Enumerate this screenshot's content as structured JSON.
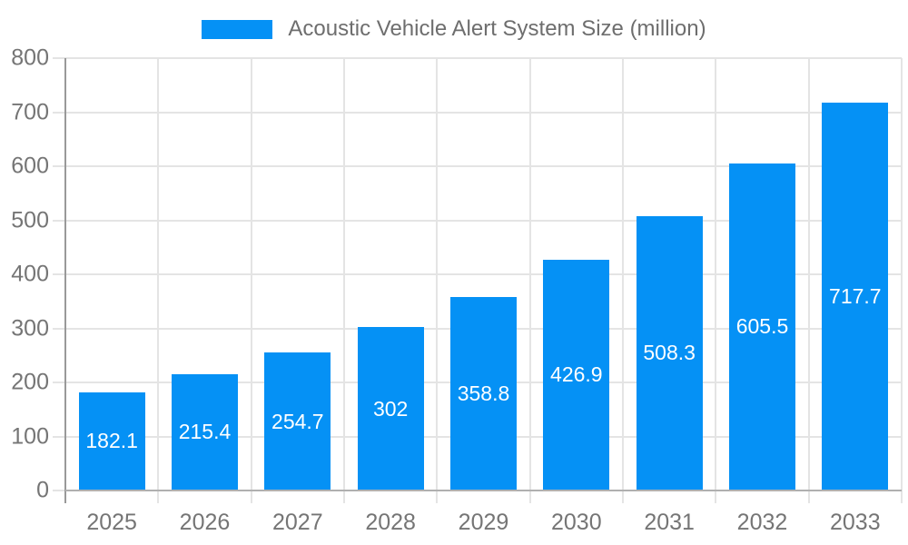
{
  "colors": {
    "bar": "#0591f5",
    "gridline": "#e4e4e4",
    "y_axis_line": "#999999",
    "x_baseline": "#b0b0b0",
    "axis_text": "#757575",
    "legend_text": "#6e6e6e",
    "value_label_text": "#ffffff",
    "background": "#ffffff"
  },
  "chart_data": {
    "type": "bar",
    "title": "Acoustic Vehicle Alert System Size (million)",
    "legend_position": "top-center",
    "categories": [
      "2025",
      "2026",
      "2027",
      "2028",
      "2029",
      "2030",
      "2031",
      "2032",
      "2033"
    ],
    "series": [
      {
        "name": "Acoustic Vehicle Alert System Size (million)",
        "values": [
          182.1,
          215.4,
          254.7,
          302,
          358.8,
          426.9,
          508.3,
          605.5,
          717.7
        ],
        "value_labels": [
          "182.1",
          "215.4",
          "254.7",
          "302",
          "358.8",
          "426.9",
          "508.3",
          "605.5",
          "717.7"
        ]
      }
    ],
    "xlabel": "",
    "ylabel": "",
    "ylim": [
      0,
      800
    ],
    "yticks": [
      0,
      100,
      200,
      300,
      400,
      500,
      600,
      700,
      800
    ],
    "grid": true
  }
}
